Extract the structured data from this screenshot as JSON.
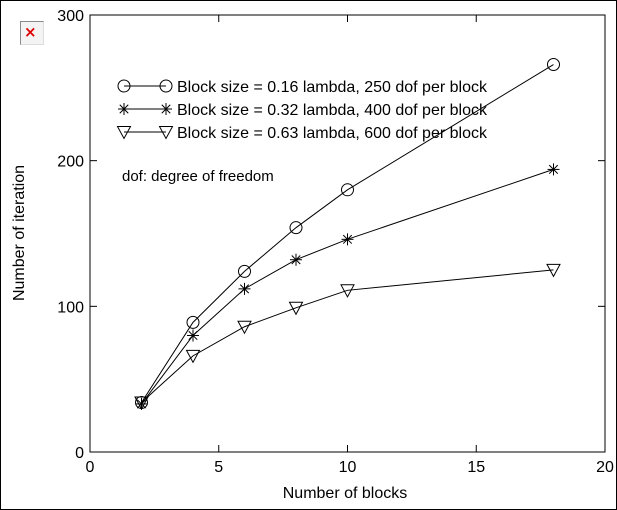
{
  "chart_data": {
    "type": "line",
    "title": "",
    "xlabel": "Number of blocks",
    "ylabel": "Number of iteration",
    "xlim": [
      0,
      20
    ],
    "ylim": [
      0,
      300
    ],
    "xticks": [
      0,
      5,
      10,
      15,
      20
    ],
    "yticks": [
      0,
      100,
      200,
      300
    ],
    "grid": false,
    "legend_position": "top-left",
    "annotation": "dof: degree of freedom",
    "series": [
      {
        "name": "Block size = 0.16 lambda, 250 dof per block",
        "marker": "circle",
        "x": [
          2,
          4,
          6,
          8,
          10,
          18
        ],
        "y": [
          34,
          89,
          124,
          154,
          180,
          266
        ]
      },
      {
        "name": "Block size = 0.32 lambda, 400 dof per block",
        "marker": "asterisk",
        "x": [
          2,
          4,
          6,
          8,
          10,
          18
        ],
        "y": [
          33,
          80,
          112,
          132,
          146,
          194
        ]
      },
      {
        "name": "Block size = 0.63 lambda, 600 dof per block",
        "marker": "triangle-down",
        "x": [
          2,
          4,
          6,
          8,
          10,
          18
        ],
        "y": [
          34,
          66,
          86,
          99,
          111,
          125
        ]
      }
    ]
  },
  "broken_image_icon": "broken-image-icon"
}
